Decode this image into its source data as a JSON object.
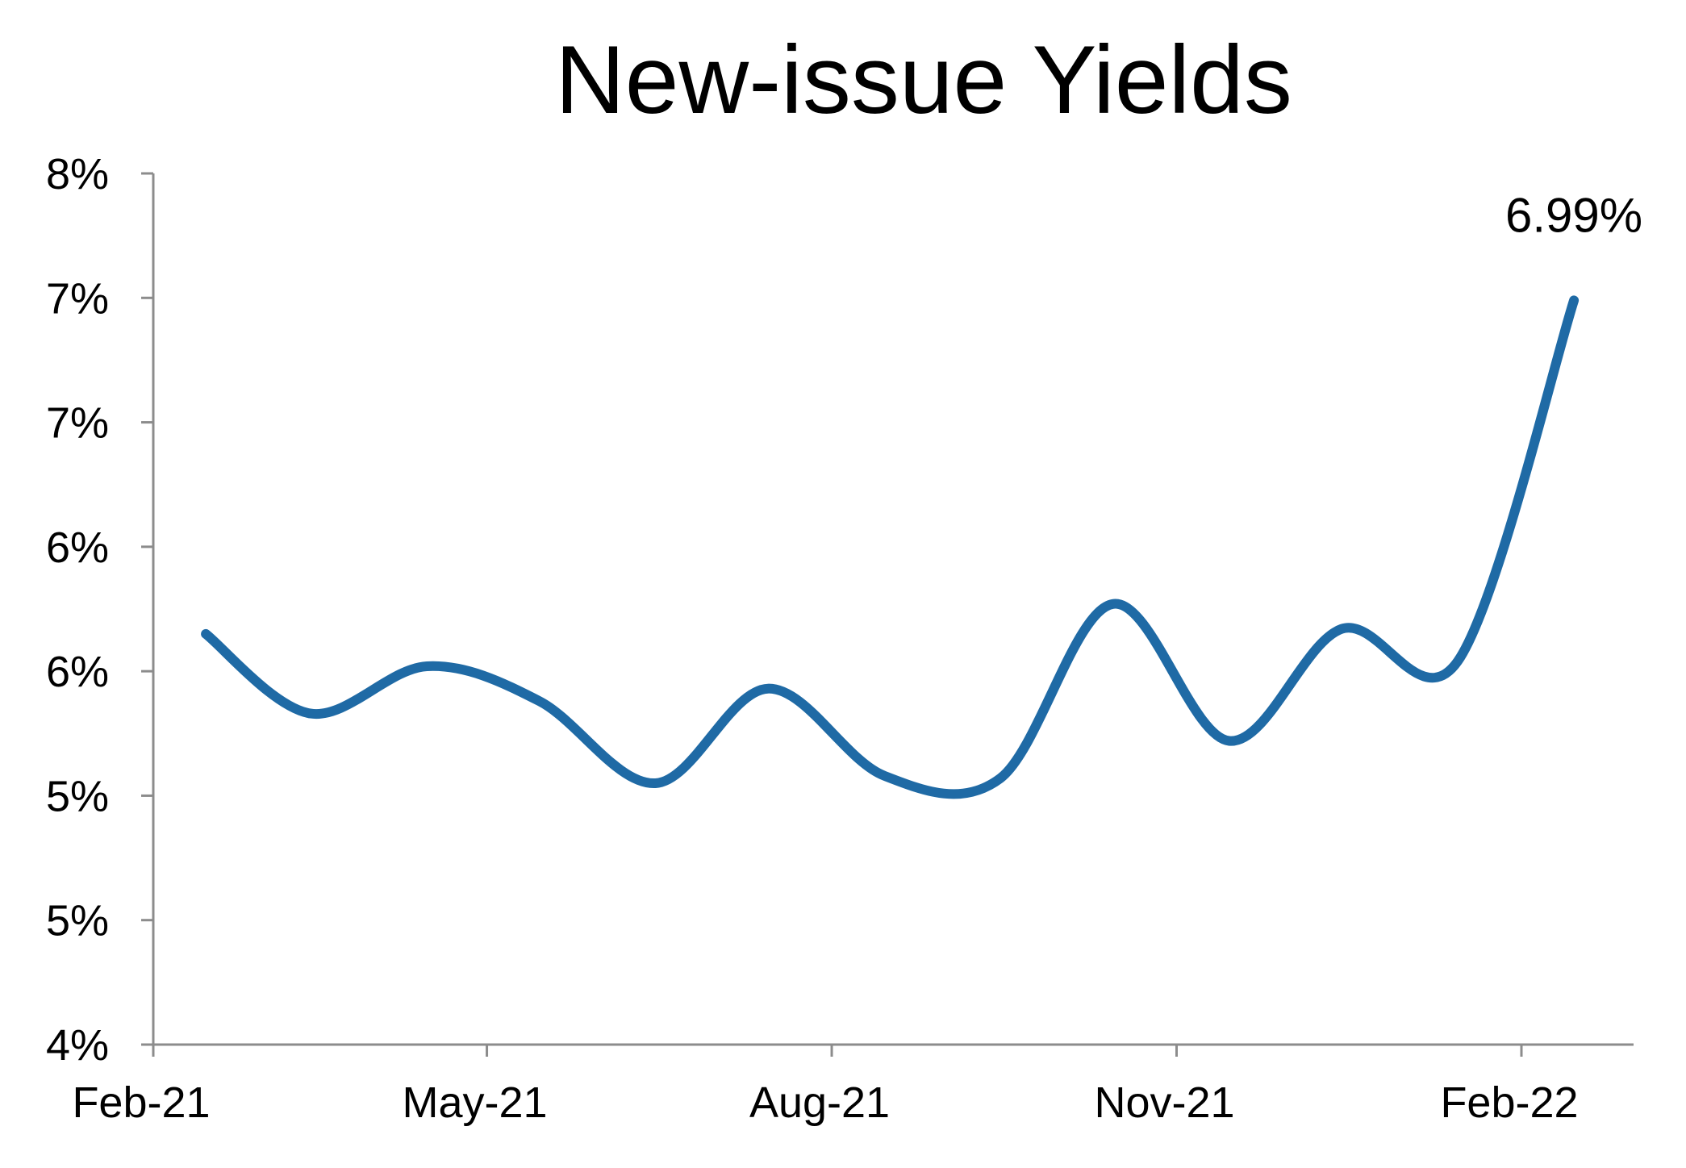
{
  "chart_data": {
    "type": "line",
    "title": "New-issue Yields",
    "xlabel": "",
    "ylabel": "",
    "x_tick_labels": [
      "Feb-21",
      "May-21",
      "Aug-21",
      "Nov-21",
      "Feb-22"
    ],
    "y_tick_labels": [
      "4%",
      "5%",
      "5%",
      "6%",
      "6%",
      "7%",
      "7%",
      "8%"
    ],
    "ylim": [
      4.0,
      7.5
    ],
    "grid": false,
    "legend": "none",
    "line_color": "#1f6aa5",
    "axis_color": "#8c8c8c",
    "series": [
      {
        "points": [
          {
            "x": "2021-02-15",
            "y": 5.65
          },
          {
            "x": "2021-03-15",
            "y": 5.33
          },
          {
            "x": "2021-04-15",
            "y": 5.52
          },
          {
            "x": "2021-05-15",
            "y": 5.38
          },
          {
            "x": "2021-06-15",
            "y": 5.05
          },
          {
            "x": "2021-07-15",
            "y": 5.43
          },
          {
            "x": "2021-08-15",
            "y": 5.08
          },
          {
            "x": "2021-09-15",
            "y": 5.07
          },
          {
            "x": "2021-10-15",
            "y": 5.77
          },
          {
            "x": "2021-11-15",
            "y": 5.22
          },
          {
            "x": "2021-12-15",
            "y": 5.67
          },
          {
            "x": "2022-01-15",
            "y": 5.54
          },
          {
            "x": "2022-02-15",
            "y": 6.99
          }
        ]
      }
    ],
    "annotations": [
      {
        "text": "6.99%",
        "x": "2022-02-15",
        "y": 6.99
      }
    ]
  }
}
